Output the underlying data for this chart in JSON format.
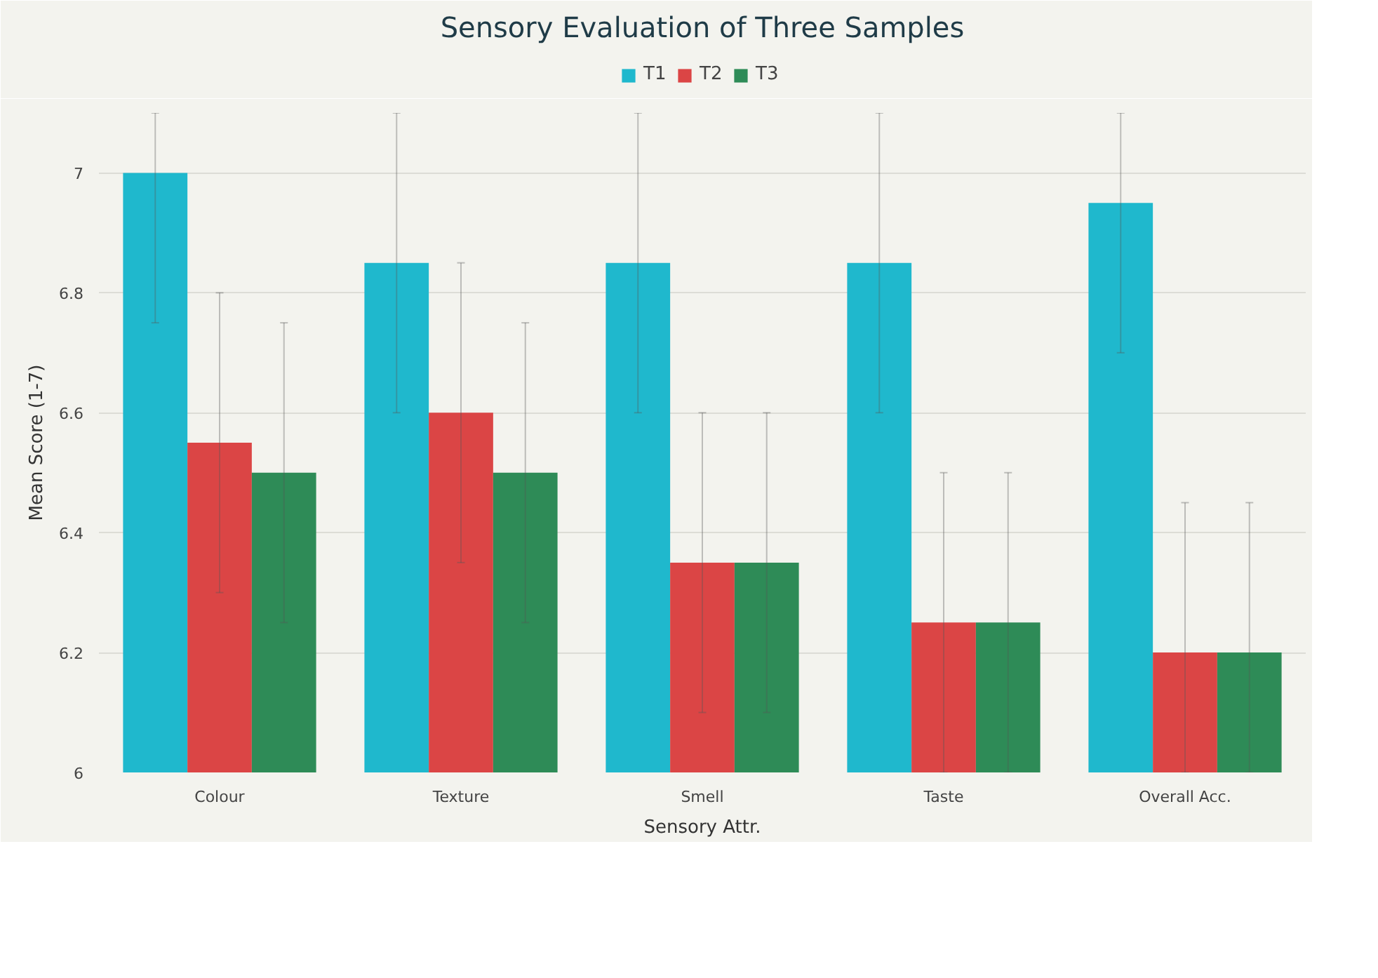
{
  "chart_data": {
    "type": "bar",
    "title": "Sensory Evaluation of Three Samples",
    "xlabel": "Sensory Attr.",
    "ylabel": "Mean Score (1-7)",
    "categories": [
      "Colour",
      "Texture",
      "Smell",
      "Taste",
      "Overall Acc."
    ],
    "series": [
      {
        "name": "T1",
        "color": "#1fb8cd",
        "values": [
          7,
          6.85,
          6.85,
          6.85,
          6.95
        ],
        "errors": [
          [
            6.75,
            7.1
          ],
          [
            6.6,
            7.1
          ],
          [
            6.6,
            7.1
          ],
          [
            6.6,
            7.1
          ],
          [
            6.7,
            7.1
          ]
        ]
      },
      {
        "name": "T2",
        "color": "#db4545",
        "values": [
          6.55,
          6.6,
          6.35,
          6.25,
          6.2
        ],
        "errors": [
          [
            6.3,
            6.8
          ],
          [
            6.35,
            6.85
          ],
          [
            6.1,
            6.6
          ],
          [
            6.0,
            6.5
          ],
          [
            6.0,
            6.45
          ]
        ]
      },
      {
        "name": "T3",
        "color": "#2e8b57",
        "values": [
          6.5,
          6.5,
          6.35,
          6.25,
          6.2
        ],
        "errors": [
          [
            6.25,
            6.75
          ],
          [
            6.25,
            6.75
          ],
          [
            6.1,
            6.6
          ],
          [
            6.0,
            6.5
          ],
          [
            6.0,
            6.45
          ]
        ]
      }
    ],
    "ylim": [
      6,
      7.1
    ],
    "yticks": [
      6,
      6.2,
      6.4,
      6.6,
      6.8,
      7
    ],
    "grid": "y",
    "legend": "top"
  }
}
